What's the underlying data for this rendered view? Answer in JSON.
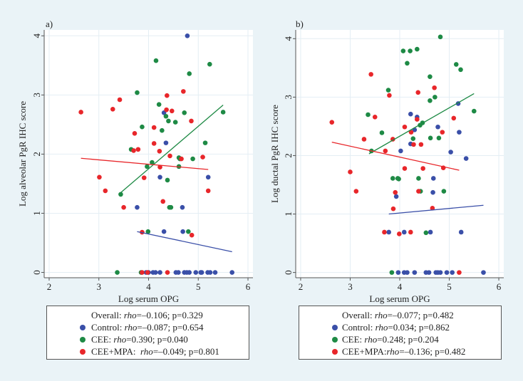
{
  "colors": {
    "control": "#3a4fa8",
    "cee": "#1e8a45",
    "cee_mpa": "#e8262a",
    "background": "#eaf3f7",
    "grid": "#e4eef4"
  },
  "chart_data": [
    {
      "type": "scatter",
      "panel_label": "a)",
      "xlabel": "Log serum OPG",
      "ylabel": "Log alveolar PgR IHC score",
      "xlim": [
        1.9,
        6.1
      ],
      "ylim": [
        -0.09,
        4.1
      ],
      "xticks": [
        "2",
        "3",
        "4",
        "5",
        "6"
      ],
      "yticks": [
        "0",
        "1",
        "2",
        "3",
        "4"
      ],
      "grid": true,
      "legend_placement": "bottom",
      "legend": [
        {
          "label": "Overall:",
          "rho": "rho",
          "stat": "=–0.106; p=0.329",
          "series": null
        },
        {
          "label": "Control:",
          "rho": "rho",
          "stat": "=–0.087; p=0.654",
          "series": "control"
        },
        {
          "label": "CEE:",
          "rho": "rho",
          "stat": "=0.390; p=0.040",
          "series": "cee"
        },
        {
          "label": "CEE+MPA:",
          "rho": "rho",
          "stat": "=–0.049; p=0.801",
          "series": "cee_mpa"
        }
      ],
      "series": [
        {
          "name": "Control",
          "key": "control",
          "points": [
            [
              4.78,
              4.0
            ],
            [
              4.31,
              2.7
            ],
            [
              4.35,
              2.19
            ],
            [
              4.23,
              1.61
            ],
            [
              5.2,
              1.61
            ],
            [
              3.77,
              1.1
            ],
            [
              4.68,
              1.1
            ],
            [
              4.31,
              0.69
            ],
            [
              4.69,
              0.69
            ],
            [
              3.95,
              0
            ],
            [
              4.0,
              0
            ],
            [
              4.09,
              0
            ],
            [
              4.14,
              0
            ],
            [
              4.23,
              0
            ],
            [
              4.55,
              0
            ],
            [
              4.6,
              0
            ],
            [
              4.72,
              0
            ],
            [
              4.77,
              0
            ],
            [
              4.82,
              0
            ],
            [
              4.95,
              0
            ],
            [
              5.05,
              0
            ],
            [
              5.07,
              0
            ],
            [
              5.19,
              0
            ],
            [
              5.24,
              0
            ],
            [
              5.34,
              0
            ],
            [
              5.68,
              0
            ]
          ],
          "fit": [
            [
              3.77,
              0.69
            ],
            [
              5.68,
              0.35
            ]
          ]
        },
        {
          "name": "CEE",
          "key": "cee",
          "points": [
            [
              4.15,
              3.58
            ],
            [
              5.23,
              3.52
            ],
            [
              4.82,
              3.36
            ],
            [
              3.77,
              3.04
            ],
            [
              4.21,
              2.84
            ],
            [
              4.72,
              2.7
            ],
            [
              5.5,
              2.71
            ],
            [
              4.35,
              2.64
            ],
            [
              4.4,
              2.56
            ],
            [
              4.54,
              2.54
            ],
            [
              3.87,
              2.46
            ],
            [
              4.27,
              2.4
            ],
            [
              3.65,
              2.08
            ],
            [
              5.14,
              2.19
            ],
            [
              4.61,
              1.94
            ],
            [
              4.63,
              1.92
            ],
            [
              4.89,
              1.92
            ],
            [
              4.07,
              1.86
            ],
            [
              3.97,
              1.79
            ],
            [
              4.61,
              1.79
            ],
            [
              4.38,
              1.56
            ],
            [
              3.44,
              1.32
            ],
            [
              4.42,
              1.1
            ],
            [
              4.45,
              1.1
            ],
            [
              3.99,
              0.69
            ],
            [
              4.8,
              0.69
            ],
            [
              3.37,
              0
            ],
            [
              3.85,
              0
            ]
          ],
          "fit": [
            [
              3.4,
              1.32
            ],
            [
              5.5,
              2.83
            ]
          ]
        },
        {
          "name": "CEE+MPA",
          "key": "cee_mpa",
          "points": [
            [
              2.64,
              2.71
            ],
            [
              3.42,
              2.92
            ],
            [
              3.28,
              2.76
            ],
            [
              4.37,
              2.99
            ],
            [
              4.7,
              3.06
            ],
            [
              4.36,
              2.75
            ],
            [
              4.47,
              2.73
            ],
            [
              4.86,
              2.56
            ],
            [
              4.11,
              2.45
            ],
            [
              3.72,
              2.35
            ],
            [
              4.11,
              2.18
            ],
            [
              3.7,
              2.06
            ],
            [
              3.79,
              2.08
            ],
            [
              4.22,
              2.05
            ],
            [
              4.43,
              1.97
            ],
            [
              4.66,
              1.92
            ],
            [
              5.09,
              1.95
            ],
            [
              4.23,
              1.78
            ],
            [
              3.01,
              1.61
            ],
            [
              3.91,
              1.6
            ],
            [
              3.13,
              1.38
            ],
            [
              5.2,
              1.38
            ],
            [
              4.29,
              1.2
            ],
            [
              3.5,
              1.1
            ],
            [
              3.87,
              0.68
            ],
            [
              4.87,
              0.63
            ],
            [
              3.87,
              0
            ],
            [
              3.98,
              0
            ],
            [
              4.38,
              0
            ]
          ],
          "fit": [
            [
              2.64,
              1.93
            ],
            [
              5.2,
              1.74
            ]
          ]
        }
      ]
    },
    {
      "type": "scatter",
      "panel_label": "b)",
      "xlabel": "Log serum OPG",
      "ylabel": "Log ductal PgR IHC score",
      "xlim": [
        1.9,
        6.1
      ],
      "ylim": [
        -0.09,
        4.15
      ],
      "xticks": [
        "2",
        "3",
        "4",
        "5",
        "6"
      ],
      "yticks": [
        "0",
        "1",
        "2",
        "3",
        "4"
      ],
      "grid": true,
      "legend_placement": "bottom",
      "legend": [
        {
          "label": "Overall:",
          "rho": "rho",
          "stat": "=–0.077; p=0.482",
          "series": null
        },
        {
          "label": "Control:",
          "rho": "rho",
          "stat": "=0.034; p=0.862",
          "series": "control"
        },
        {
          "label": "CEE:",
          "rho": "rho",
          "stat": "=0.248; p=0.204",
          "series": "cee"
        },
        {
          "label": "CEE+MPA:",
          "rho": "rho",
          "stat": "=–0.136; p=0.482",
          "series": "cee_mpa"
        }
      ],
      "series": [
        {
          "name": "Control",
          "key": "control",
          "points": [
            [
              5.18,
              2.89
            ],
            [
              4.22,
              2.71
            ],
            [
              4.35,
              2.66
            ],
            [
              4.3,
              2.44
            ],
            [
              4.77,
              2.49
            ],
            [
              5.2,
              2.4
            ],
            [
              4.22,
              2.2
            ],
            [
              4.02,
              2.08
            ],
            [
              5.03,
              2.06
            ],
            [
              5.34,
              1.95
            ],
            [
              4.68,
              1.61
            ],
            [
              4.67,
              1.37
            ],
            [
              3.93,
              1.3
            ],
            [
              3.78,
              0.69
            ],
            [
              4.09,
              0.69
            ],
            [
              4.62,
              0.69
            ],
            [
              5.24,
              0.69
            ],
            [
              3.97,
              0
            ],
            [
              4.09,
              0
            ],
            [
              4.15,
              0
            ],
            [
              4.3,
              0
            ],
            [
              4.53,
              0
            ],
            [
              4.59,
              0
            ],
            [
              4.73,
              0
            ],
            [
              4.77,
              0
            ],
            [
              4.82,
              0
            ],
            [
              4.95,
              0
            ],
            [
              5.06,
              0
            ],
            [
              5.69,
              0
            ]
          ],
          "fit": [
            [
              3.78,
              1.0
            ],
            [
              5.69,
              1.15
            ]
          ]
        },
        {
          "name": "CEE",
          "key": "cee",
          "points": [
            [
              4.82,
              4.03
            ],
            [
              4.07,
              3.79
            ],
            [
              4.21,
              3.79
            ],
            [
              4.35,
              3.82
            ],
            [
              4.15,
              3.58
            ],
            [
              5.14,
              3.56
            ],
            [
              5.23,
              3.47
            ],
            [
              4.61,
              3.35
            ],
            [
              3.77,
              3.12
            ],
            [
              4.71,
              3.0
            ],
            [
              4.61,
              2.94
            ],
            [
              3.36,
              2.7
            ],
            [
              5.5,
              2.76
            ],
            [
              4.46,
              2.56
            ],
            [
              4.41,
              2.52
            ],
            [
              3.64,
              2.39
            ],
            [
              4.27,
              2.29
            ],
            [
              4.62,
              2.3
            ],
            [
              4.79,
              2.3
            ],
            [
              3.43,
              2.08
            ],
            [
              3.86,
              1.61
            ],
            [
              3.96,
              1.61
            ],
            [
              3.98,
              1.6
            ],
            [
              4.38,
              1.61
            ],
            [
              4.42,
              1.39
            ],
            [
              4.89,
              1.39
            ],
            [
              4.53,
              0.68
            ],
            [
              3.84,
              0
            ]
          ],
          "fit": [
            [
              3.38,
              2.03
            ],
            [
              5.5,
              3.06
            ]
          ]
        },
        {
          "name": "CEE+MPA",
          "key": "cee_mpa",
          "points": [
            [
              2.63,
              2.57
            ],
            [
              3.42,
              3.39
            ],
            [
              3.79,
              3.03
            ],
            [
              4.37,
              3.08
            ],
            [
              4.7,
              3.16
            ],
            [
              3.5,
              2.66
            ],
            [
              4.35,
              2.62
            ],
            [
              5.09,
              2.64
            ],
            [
              4.1,
              2.49
            ],
            [
              4.23,
              2.4
            ],
            [
              4.86,
              2.4
            ],
            [
              3.28,
              2.28
            ],
            [
              3.86,
              2.28
            ],
            [
              4.28,
              2.19
            ],
            [
              4.43,
              2.19
            ],
            [
              3.71,
              2.08
            ],
            [
              3.0,
              1.72
            ],
            [
              4.1,
              1.78
            ],
            [
              4.47,
              1.78
            ],
            [
              4.88,
              1.79
            ],
            [
              3.12,
              1.39
            ],
            [
              3.91,
              1.37
            ],
            [
              4.38,
              1.39
            ],
            [
              3.87,
              1.09
            ],
            [
              4.66,
              1.1
            ],
            [
              3.69,
              0.69
            ],
            [
              3.99,
              0.66
            ],
            [
              4.22,
              0.69
            ],
            [
              5.2,
              0
            ]
          ],
          "fit": [
            [
              2.63,
              2.23
            ],
            [
              5.2,
              1.75
            ]
          ]
        }
      ]
    }
  ]
}
